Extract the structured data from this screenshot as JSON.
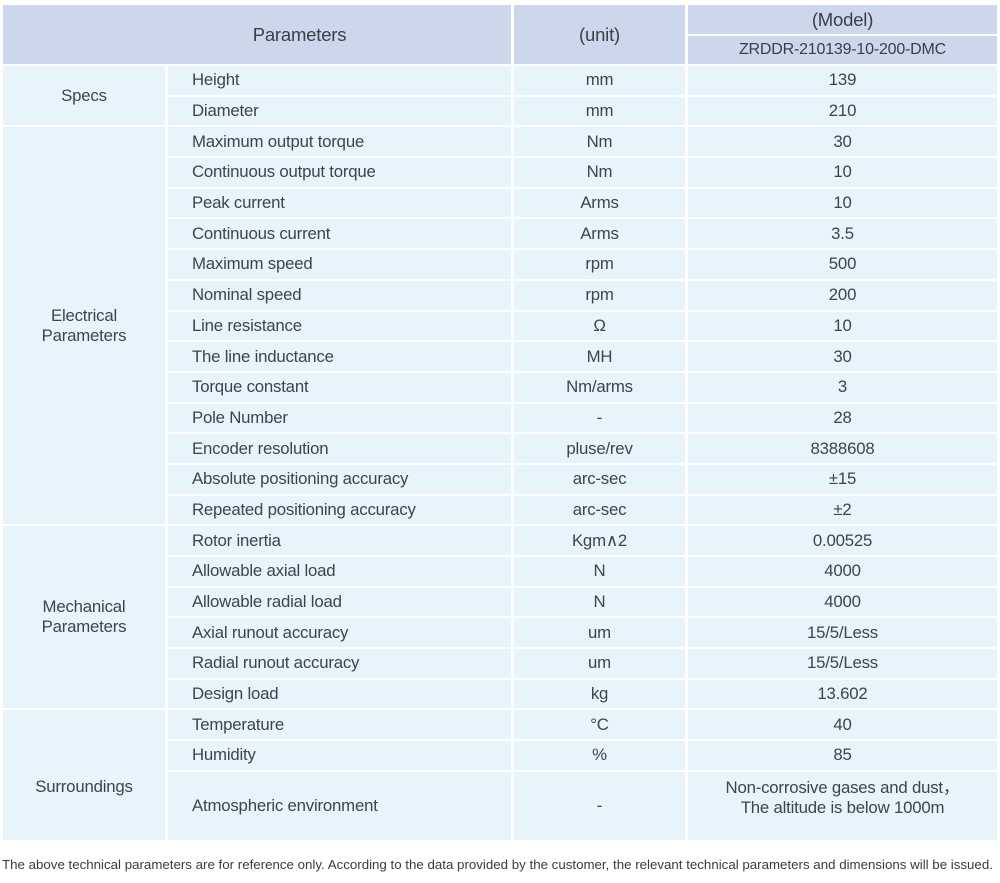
{
  "table": {
    "header": {
      "parameters_label": "Parameters",
      "unit_label": "(unit)",
      "model_label": "(Model)",
      "model_value": "ZRDDR-210139-10-200-DMC"
    },
    "groups": [
      {
        "category": "Specs",
        "rows": [
          {
            "name": "Height",
            "unit": "mm",
            "value": "139"
          },
          {
            "name": "Diameter",
            "unit": "mm",
            "value": "210"
          }
        ]
      },
      {
        "category": "Electrical\nParameters",
        "rows": [
          {
            "name": "Maximum output torque",
            "unit": "Nm",
            "value": "30"
          },
          {
            "name": "Continuous output torque",
            "unit": "Nm",
            "value": "10"
          },
          {
            "name": "Peak current",
            "unit": "Arms",
            "value": "10"
          },
          {
            "name": "Continuous current",
            "unit": "Arms",
            "value": "3.5"
          },
          {
            "name": "Maximum speed",
            "unit": "rpm",
            "value": "500"
          },
          {
            "name": "Nominal speed",
            "unit": "rpm",
            "value": "200"
          },
          {
            "name": "Line resistance",
            "unit": "Ω",
            "value": "10"
          },
          {
            "name": "The line inductance",
            "unit": "MH",
            "value": "30"
          },
          {
            "name": "Torque constant",
            "unit": "Nm/arms",
            "value": "3"
          },
          {
            "name": "Pole Number",
            "unit": "-",
            "value": "28"
          },
          {
            "name": "Encoder resolution",
            "unit": "pluse/rev",
            "value": "8388608"
          },
          {
            "name": "Absolute positioning accuracy",
            "unit": "arc-sec",
            "value": "±15"
          },
          {
            "name": "Repeated positioning accuracy",
            "unit": "arc-sec",
            "value": "±2"
          }
        ]
      },
      {
        "category": "Mechanical\nParameters",
        "rows": [
          {
            "name": "Rotor inertia",
            "unit": "Kgm∧2",
            "value": "0.00525"
          },
          {
            "name": "Allowable axial load",
            "unit": "N",
            "value": "4000"
          },
          {
            "name": "Allowable radial load",
            "unit": "N",
            "value": "4000"
          },
          {
            "name": "Axial runout accuracy",
            "unit": "um",
            "value": "15/5/Less"
          },
          {
            "name": "Radial runout accuracy",
            "unit": "um",
            "value": "15/5/Less"
          },
          {
            "name": "Design load",
            "unit": "kg",
            "value": "13.602"
          }
        ]
      },
      {
        "category": "Surroundings",
        "rows": [
          {
            "name": "Temperature",
            "unit": "°C",
            "value": "40"
          },
          {
            "name": "Humidity",
            "unit": "%",
            "value": "85"
          },
          {
            "name": "Atmospheric environment",
            "unit": "-",
            "value": "Non-corrosive gases and dust，\nThe altitude is below 1000m"
          }
        ]
      }
    ],
    "footnote": "The above technical parameters are for reference only. According to the data provided by the customer, the relevant technical parameters and dimensions will be issued."
  },
  "colors": {
    "header_fill": "#cdd7ec",
    "row_fill": "#e7f4fc",
    "separator": "#ffffff",
    "text": "#3e444b"
  }
}
